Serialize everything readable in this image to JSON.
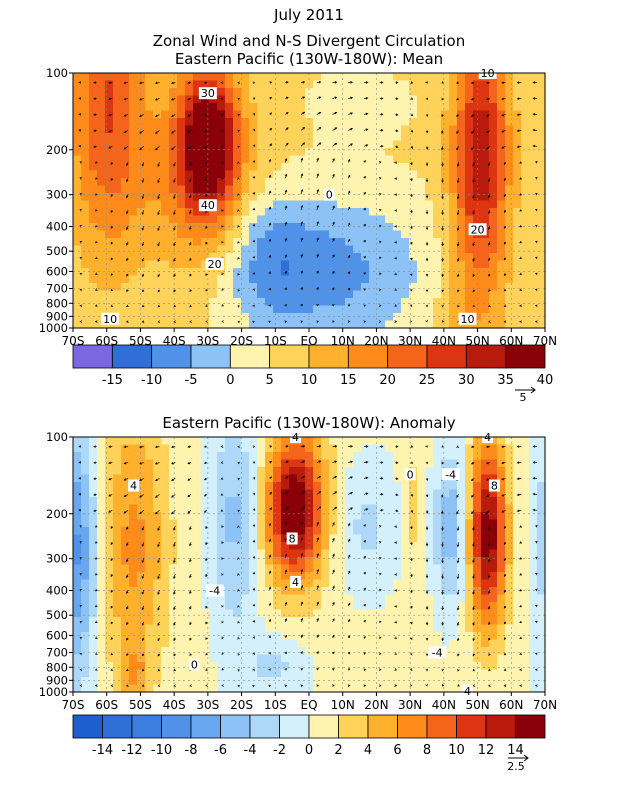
{
  "figure": {
    "title_line1": "July 2011",
    "title_line2": "Zonal Wind and N-S Divergent Circulation"
  },
  "chart_data": [
    {
      "type": "heatmap",
      "title": "Eastern Pacific (130W-180W): Mean",
      "x_ticks": [
        "70S",
        "60S",
        "50S",
        "40S",
        "30S",
        "20S",
        "10S",
        "EQ",
        "10N",
        "20N",
        "30N",
        "40N",
        "50N",
        "60N",
        "70N"
      ],
      "x_values": [
        -70,
        -60,
        -50,
        -40,
        -30,
        -20,
        -10,
        0,
        10,
        20,
        30,
        40,
        50,
        60,
        70
      ],
      "y_ticks": [
        "100",
        "200",
        "300",
        "400",
        "500",
        "600",
        "700",
        "800",
        "900",
        "1000"
      ],
      "y_values": [
        100,
        200,
        300,
        400,
        500,
        600,
        700,
        800,
        900,
        1000
      ],
      "y_scale": "log-pressure",
      "ylim": [
        1000,
        100
      ],
      "xlim": [
        -70,
        70
      ],
      "colorbar": {
        "levels": [
          -20,
          -15,
          -10,
          -5,
          0,
          5,
          10,
          15,
          20,
          25,
          30,
          35,
          40,
          45
        ],
        "labels": [
          "-15",
          "-10",
          "-5",
          "0",
          "5",
          "10",
          "15",
          "20",
          "25",
          "30",
          "35",
          "40"
        ],
        "colors": [
          "#7b68e0",
          "#2f6fd6",
          "#4f92e8",
          "#8cc2f5",
          "#fff3b0",
          "#ffd35a",
          "#ffb02c",
          "#ff8c1a",
          "#f4641a",
          "#dd3512",
          "#b81a0c",
          "#8a0008"
        ]
      },
      "contour_labels": [
        {
          "text": "30",
          "lon": -30,
          "p": 120
        },
        {
          "text": "40",
          "lon": -30,
          "p": 330
        },
        {
          "text": "20",
          "lon": -28,
          "p": 560
        },
        {
          "text": "10",
          "lon": -59,
          "p": 920
        },
        {
          "text": "0",
          "lon": 6,
          "p": 300
        },
        {
          "text": "20",
          "lon": 50,
          "p": 410
        },
        {
          "text": "10",
          "lon": 47,
          "p": 920
        },
        {
          "text": "10",
          "lon": 53,
          "p": 100
        }
      ],
      "vector_reference": "5"
    },
    {
      "type": "heatmap",
      "title": "Eastern Pacific (130W-180W): Anomaly",
      "x_ticks": [
        "70S",
        "60S",
        "50S",
        "40S",
        "30S",
        "20S",
        "10S",
        "EQ",
        "10N",
        "20N",
        "30N",
        "40N",
        "50N",
        "60N",
        "70N"
      ],
      "x_values": [
        -70,
        -60,
        -50,
        -40,
        -30,
        -20,
        -10,
        0,
        10,
        20,
        30,
        40,
        50,
        60,
        70
      ],
      "y_ticks": [
        "100",
        "200",
        "300",
        "400",
        "500",
        "600",
        "700",
        "800",
        "900",
        "1000"
      ],
      "y_values": [
        100,
        200,
        300,
        400,
        500,
        600,
        700,
        800,
        900,
        1000
      ],
      "y_scale": "log-pressure",
      "ylim": [
        1000,
        100
      ],
      "xlim": [
        -70,
        70
      ],
      "colorbar": {
        "levels": [
          -16,
          -14,
          -12,
          -10,
          -8,
          -6,
          -4,
          -2,
          0,
          2,
          4,
          6,
          8,
          10,
          12,
          14,
          16
        ],
        "labels": [
          "-14",
          "-12",
          "-10",
          "-8",
          "-6",
          "-4",
          "-2",
          "0",
          "2",
          "4",
          "6",
          "8",
          "10",
          "12",
          "14"
        ],
        "colors": [
          "#1e5fcf",
          "#2f6fd6",
          "#3d7fe0",
          "#4f92e8",
          "#68a6ef",
          "#8cc2f5",
          "#add8f8",
          "#d4f0fb",
          "#fff3b0",
          "#ffd35a",
          "#ffb02c",
          "#ff8c1a",
          "#f4641a",
          "#dd3512",
          "#b81a0c",
          "#8a0008"
        ]
      },
      "contour_labels": [
        {
          "text": "4",
          "lon": -52,
          "p": 155
        },
        {
          "text": "-4",
          "lon": -28,
          "p": 400
        },
        {
          "text": "0",
          "lon": -34,
          "p": 780
        },
        {
          "text": "4",
          "lon": -4,
          "p": 100
        },
        {
          "text": "8",
          "lon": -5,
          "p": 250
        },
        {
          "text": "4",
          "lon": -4,
          "p": 370
        },
        {
          "text": "0",
          "lon": 30,
          "p": 140
        },
        {
          "text": "-4",
          "lon": 42,
          "p": 140
        },
        {
          "text": "-4",
          "lon": 38,
          "p": 700
        },
        {
          "text": "4",
          "lon": 53,
          "p": 100
        },
        {
          "text": "8",
          "lon": 55,
          "p": 155
        },
        {
          "text": "4",
          "lon": 47,
          "p": 990
        }
      ],
      "vector_reference": "2.5"
    }
  ]
}
